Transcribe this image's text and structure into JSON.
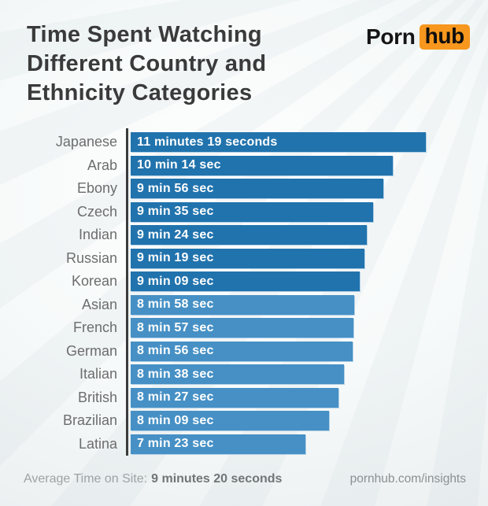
{
  "header": {
    "title_lines": [
      "Time Spent Watching",
      "Different Country and",
      "Ethnicity Categories"
    ],
    "logo": {
      "word1": "Porn",
      "word2": "hub",
      "badge_color": "#F7971D"
    }
  },
  "chart_data": {
    "type": "bar",
    "orientation": "horizontal",
    "title": "Time Spent Watching Different Country and Ethnicity Categories",
    "value_unit": "seconds",
    "grid": false,
    "legend": "none",
    "categories": [
      "Japanese",
      "Arab",
      "Ebony",
      "Czech",
      "Indian",
      "Russian",
      "Korean",
      "Asian",
      "French",
      "German",
      "Italian",
      "British",
      "Brazilian",
      "Latina"
    ],
    "values_seconds": [
      679,
      614,
      596,
      575,
      564,
      559,
      549,
      538,
      537,
      536,
      518,
      507,
      489,
      443
    ],
    "rows": [
      {
        "label": "Japanese",
        "value_label": "11 minutes 19 seconds",
        "seconds": 679,
        "shade": "dark"
      },
      {
        "label": "Arab",
        "value_label": "10 min 14 sec",
        "seconds": 614,
        "shade": "dark"
      },
      {
        "label": "Ebony",
        "value_label": "9 min 56 sec",
        "seconds": 596,
        "shade": "dark"
      },
      {
        "label": "Czech",
        "value_label": "9 min 35 sec",
        "seconds": 575,
        "shade": "dark"
      },
      {
        "label": "Indian",
        "value_label": "9 min 24 sec",
        "seconds": 564,
        "shade": "dark"
      },
      {
        "label": "Russian",
        "value_label": "9 min 19 sec",
        "seconds": 559,
        "shade": "dark"
      },
      {
        "label": "Korean",
        "value_label": "9 min 09 sec",
        "seconds": 549,
        "shade": "dark"
      },
      {
        "label": "Asian",
        "value_label": "8 min 58 sec",
        "seconds": 538,
        "shade": "light"
      },
      {
        "label": "French",
        "value_label": "8 min 57 sec",
        "seconds": 537,
        "shade": "light"
      },
      {
        "label": "German",
        "value_label": "8 min 56 sec",
        "seconds": 536,
        "shade": "light"
      },
      {
        "label": "Italian",
        "value_label": "8 min 38 sec",
        "seconds": 518,
        "shade": "light"
      },
      {
        "label": "British",
        "value_label": "8 min 27 sec",
        "seconds": 507,
        "shade": "light"
      },
      {
        "label": "Brazilian",
        "value_label": "8 min 09 sec",
        "seconds": 489,
        "shade": "light"
      },
      {
        "label": "Latina",
        "value_label": "7 min 23 sec",
        "seconds": 443,
        "shade": "light"
      }
    ],
    "colors": {
      "bar_dark": "#2173AD",
      "bar_light": "#4690C5",
      "axis": "#3B3B3B",
      "value_text": "#FFFFFF",
      "label_text": "#6D6D6D"
    }
  },
  "footer": {
    "left_label": "Average Time on Site:",
    "left_value": "9 minutes 20 seconds",
    "right_text": "pornhub.com/insights"
  }
}
